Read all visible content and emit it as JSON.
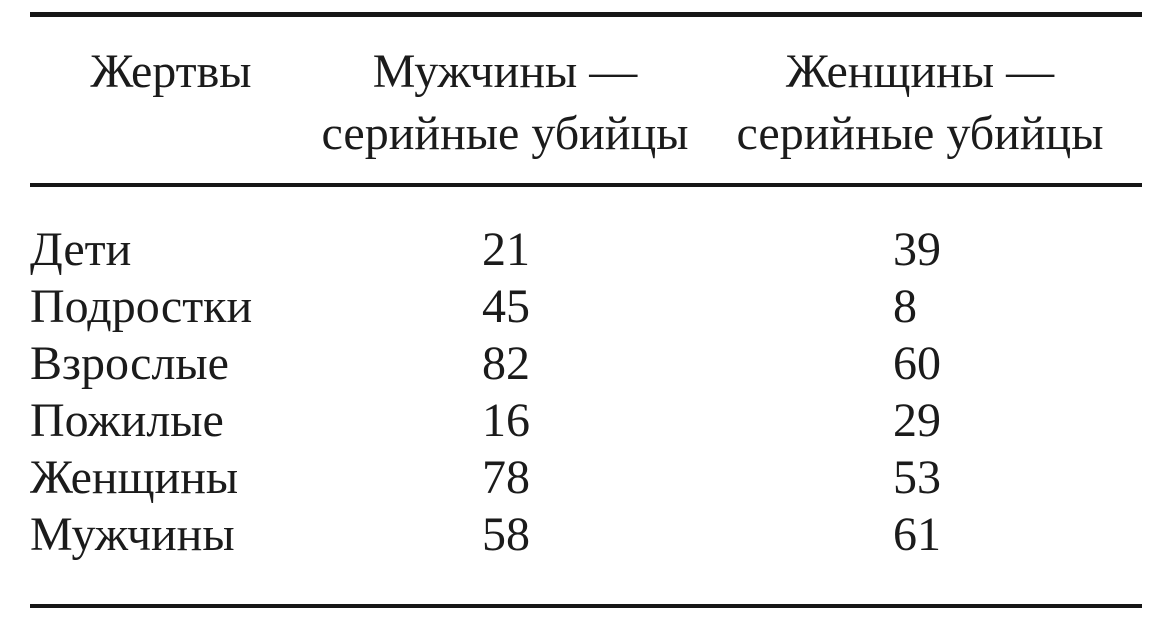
{
  "page": {
    "background_color": "#ffffff",
    "text_color": "#1b1b1b",
    "rule_color": "#161616"
  },
  "table": {
    "header": {
      "victims": "Жертвы",
      "male_line1": "Мужчины —",
      "male_line2": "серийные убийцы",
      "female_line1": "Женщины —",
      "female_line2": "серийные убийцы"
    },
    "rows": [
      {
        "label": "Дети",
        "male": "21",
        "female": "39"
      },
      {
        "label": "Подростки",
        "male": "45",
        "female": "8"
      },
      {
        "label": "Взрослые",
        "male": "82",
        "female": "60"
      },
      {
        "label": "Пожилые",
        "male": "16",
        "female": "29"
      },
      {
        "label": "Женщины",
        "male": "78",
        "female": "53"
      },
      {
        "label": "Мужчины",
        "male": "58",
        "female": "61"
      }
    ]
  },
  "chart_data": {
    "type": "table",
    "columns": [
      "Жертвы",
      "Мужчины — серийные убийцы",
      "Женщины — серийные убийцы"
    ],
    "rows": [
      [
        "Дети",
        21,
        39
      ],
      [
        "Подростки",
        45,
        8
      ],
      [
        "Взрослые",
        82,
        60
      ],
      [
        "Пожилые",
        16,
        29
      ],
      [
        "Женщины",
        78,
        53
      ],
      [
        "Мужчины",
        58,
        61
      ]
    ]
  }
}
